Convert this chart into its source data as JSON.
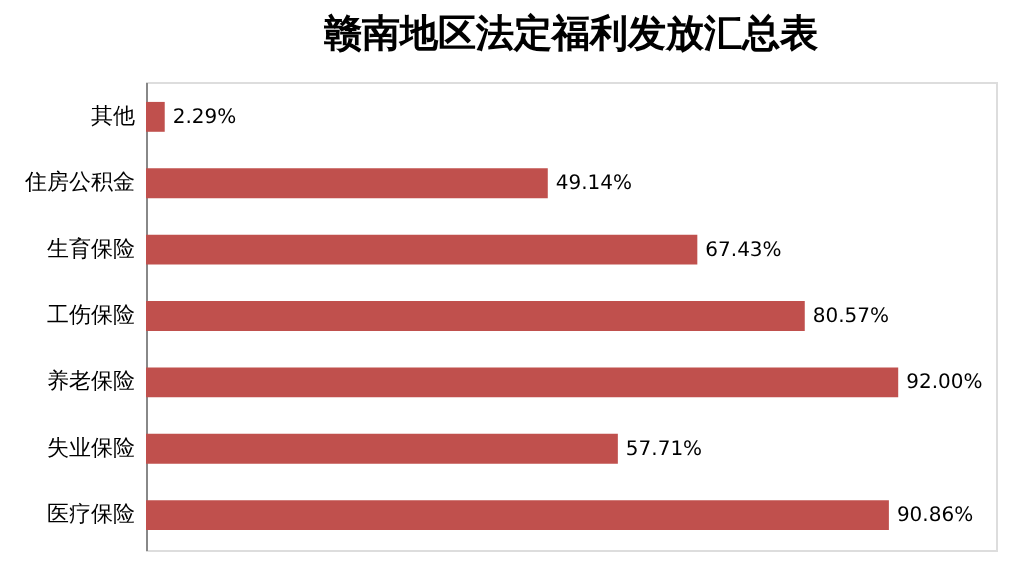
{
  "chart_data": {
    "type": "bar",
    "orientation": "horizontal",
    "title": "赣南地区法定福利发放汇总表",
    "categories": [
      "其他",
      "住房公积金",
      "生育保险",
      "工伤保险",
      "养老保险",
      "失业保险",
      "医疗保险"
    ],
    "values": [
      2.29,
      49.14,
      67.43,
      80.57,
      92.0,
      57.71,
      90.86
    ],
    "value_labels": [
      "2.29%",
      "49.14%",
      "67.43%",
      "80.57%",
      "92.00%",
      "57.71%",
      "90.86%"
    ],
    "color": "#c0504d"
  }
}
